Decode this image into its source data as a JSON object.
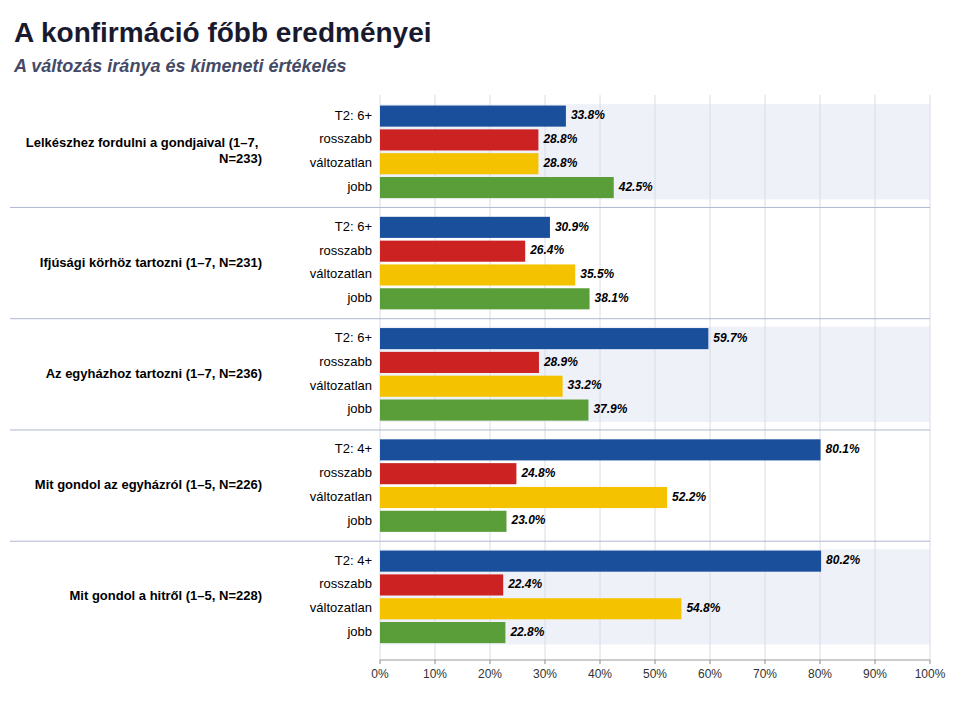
{
  "chart_data": {
    "type": "bar",
    "orientation": "horizontal",
    "title": "A konfirmáció főbb eredményei",
    "subtitle": "A változás iránya és kimeneti értékelés",
    "groups": [
      {
        "label": "Lelkészhez fordulni a gondjaival (1–7, N=233)",
        "categories": [
          "jobb",
          "változatlan",
          "rosszabb",
          "T2: 6+"
        ],
        "values": [
          42.5,
          28.8,
          28.8,
          33.8
        ],
        "value_labels": [
          "42.5%",
          "28.8%",
          "28.8%",
          "33.8%"
        ],
        "colors": [
          "#5a9e3a",
          "#f5c200",
          "#cc2222",
          "#1a4f9c"
        ]
      },
      {
        "label": "Ifjúsági körhöz tartozni (1–7, N=231)",
        "categories": [
          "jobb",
          "változatlan",
          "rosszabb",
          "T2: 6+"
        ],
        "values": [
          38.1,
          35.5,
          26.4,
          30.9
        ],
        "value_labels": [
          "38.1%",
          "35.5%",
          "26.4%",
          "30.9%"
        ],
        "colors": [
          "#5a9e3a",
          "#f5c200",
          "#cc2222",
          "#1a4f9c"
        ]
      },
      {
        "label": "Az egyházhoz tartozni (1–7, N=236)",
        "categories": [
          "jobb",
          "változatlan",
          "rosszabb",
          "T2: 6+"
        ],
        "values": [
          37.9,
          33.2,
          28.9,
          59.7
        ],
        "value_labels": [
          "37.9%",
          "33.2%",
          "28.9%",
          "59.7%"
        ],
        "colors": [
          "#5a9e3a",
          "#f5c200",
          "#cc2222",
          "#1a4f9c"
        ]
      },
      {
        "label": "Mit gondol az egyházról (1–5, N=226)",
        "categories": [
          "jobb",
          "változatlan",
          "rosszabb",
          "T2: 4+"
        ],
        "values": [
          23.0,
          52.2,
          24.8,
          80.1
        ],
        "value_labels": [
          "23.0%",
          "52.2%",
          "24.8%",
          "80.1%"
        ],
        "colors": [
          "#5a9e3a",
          "#f5c200",
          "#cc2222",
          "#1a4f9c"
        ]
      },
      {
        "label": "Mit gondol a hitről (1–5, N=228)",
        "categories": [
          "jobb",
          "változatlan",
          "rosszabb",
          "T2: 4+"
        ],
        "values": [
          22.8,
          54.8,
          22.4,
          80.2
        ],
        "value_labels": [
          "22.8%",
          "54.8%",
          "22.4%",
          "80.2%"
        ],
        "colors": [
          "#5a9e3a",
          "#f5c200",
          "#cc2222",
          "#1a4f9c"
        ]
      }
    ],
    "xlim": [
      0,
      100
    ],
    "xticks": [
      {
        "value": 0,
        "label": "0%"
      },
      {
        "value": 10,
        "label": "10%"
      },
      {
        "value": 20,
        "label": "20%"
      },
      {
        "value": 30,
        "label": "30%"
      },
      {
        "value": 40,
        "label": "40%"
      },
      {
        "value": 50,
        "label": "50%"
      },
      {
        "value": 60,
        "label": "60%"
      },
      {
        "value": 70,
        "label": "70%"
      },
      {
        "value": 80,
        "label": "80%"
      },
      {
        "value": 90,
        "label": "90%"
      },
      {
        "value": 100,
        "label": "100%"
      }
    ],
    "grid": true,
    "data_labels": true
  }
}
